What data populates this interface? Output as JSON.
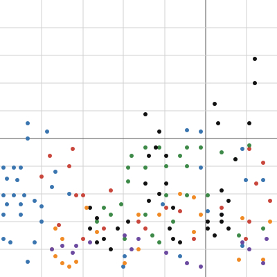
{
  "chart_data": {
    "type": "scatter",
    "xlim": [
      -297,
      103
    ],
    "ylim": [
      -200,
      200
    ],
    "xticks": [
      -237,
      -177,
      -119,
      -59,
      0,
      59
    ],
    "yticks": [
      -160,
      -120,
      -80,
      -40,
      0,
      40,
      80,
      120,
      160
    ],
    "grid": true,
    "series": [
      {
        "color": "#3a75b0",
        "x": [
          -257,
          -257,
          -229,
          -292,
          -277,
          -267,
          -287,
          -272,
          -292,
          -277,
          -262,
          -287,
          -267,
          -247,
          -237,
          -292,
          -267,
          -237,
          -292,
          -282,
          -247,
          -217,
          -222,
          -197,
          -117,
          -119,
          -62,
          -37,
          -27,
          -7,
          53,
          58,
          83,
          3,
          23,
          53,
          -7,
          -257
        ],
        "values": [
          22,
          0,
          10,
          -42,
          -42,
          -42,
          -58,
          -60,
          -82,
          -82,
          -82,
          -95,
          -95,
          -90,
          -98,
          -110,
          -110,
          -120,
          -145,
          -150,
          -150,
          -48,
          -70,
          -80,
          -170,
          -185,
          -95,
          -170,
          12,
          10,
          -15,
          -60,
          -60,
          -105,
          -110,
          -155,
          -42,
          -178
        ]
      },
      {
        "color": "#c8463c",
        "x": [
          -192,
          -197,
          -225,
          -237,
          -187,
          -177,
          -137,
          -97,
          -147,
          -87,
          -212,
          63,
          83,
          73,
          93,
          63,
          58,
          -37,
          -17,
          23,
          -177,
          -57
        ],
        "values": [
          -15,
          -40,
          -25,
          -55,
          -82,
          -82,
          -75,
          -120,
          -130,
          -130,
          -125,
          -15,
          -35,
          -65,
          -90,
          -120,
          -145,
          -105,
          -145,
          -100,
          -145,
          -100
        ]
      },
      {
        "color": "#3d8a48",
        "x": [
          -87,
          -67,
          -27,
          -7,
          -37,
          -107,
          -112,
          -87,
          -57,
          -112,
          43,
          -27,
          3,
          -27,
          -57,
          -147,
          -137,
          -157,
          -122,
          -87,
          -47,
          -77,
          -117,
          -67,
          48,
          83,
          23,
          63
        ],
        "values": [
          -13,
          -13,
          -13,
          -13,
          -25,
          -25,
          -42,
          -42,
          -40,
          -62,
          -30,
          -40,
          -82,
          -82,
          -82,
          -100,
          -110,
          -120,
          -95,
          -110,
          -120,
          -140,
          -145,
          -150,
          -140,
          -130,
          -20,
          -10
        ]
      },
      {
        "color": "#111111",
        "x": [
          -87,
          -67,
          13,
          18,
          71,
          71,
          63,
          -82,
          -72,
          -57,
          -167,
          -157,
          -167,
          -147,
          -137,
          -157,
          -127,
          -112,
          -87,
          -57,
          -67,
          -82,
          -47,
          3,
          23,
          33,
          13,
          3,
          23,
          33,
          23,
          43,
          -37,
          -47,
          -52
        ],
        "values": [
          35,
          10,
          50,
          22,
          115,
          80,
          22,
          -25,
          -13,
          -25,
          -100,
          -115,
          -130,
          -145,
          -160,
          -150,
          -130,
          -120,
          -65,
          -65,
          -80,
          -90,
          -100,
          -120,
          -120,
          -130,
          -140,
          -130,
          -75,
          -90,
          -110,
          -30,
          -150,
          -145,
          -130
        ]
      },
      {
        "color": "#f08a24",
        "x": [
          -217,
          -207,
          -222,
          -217,
          -197,
          -187,
          -207,
          -117,
          -97,
          -67,
          -37,
          -17,
          -7,
          -17,
          53,
          48,
          83,
          93,
          -157,
          -172,
          -97
        ],
        "values": [
          -130,
          -145,
          -160,
          -170,
          -185,
          -178,
          -180,
          -180,
          -110,
          -110,
          -80,
          -85,
          -110,
          -135,
          -115,
          -175,
          -175,
          -120,
          -135,
          -100,
          -160
        ]
      },
      {
        "color": "#6b4aa0",
        "x": [
          -222,
          -207,
          -187,
          -192,
          -167,
          -117,
          -107,
          -97,
          -57,
          -27,
          -7,
          53,
          83,
          88,
          63
        ],
        "values": [
          -160,
          -155,
          -155,
          -165,
          -150,
          -140,
          -160,
          -145,
          -165,
          -180,
          -185,
          -150,
          -180,
          -145,
          -160
        ]
      }
    ]
  }
}
